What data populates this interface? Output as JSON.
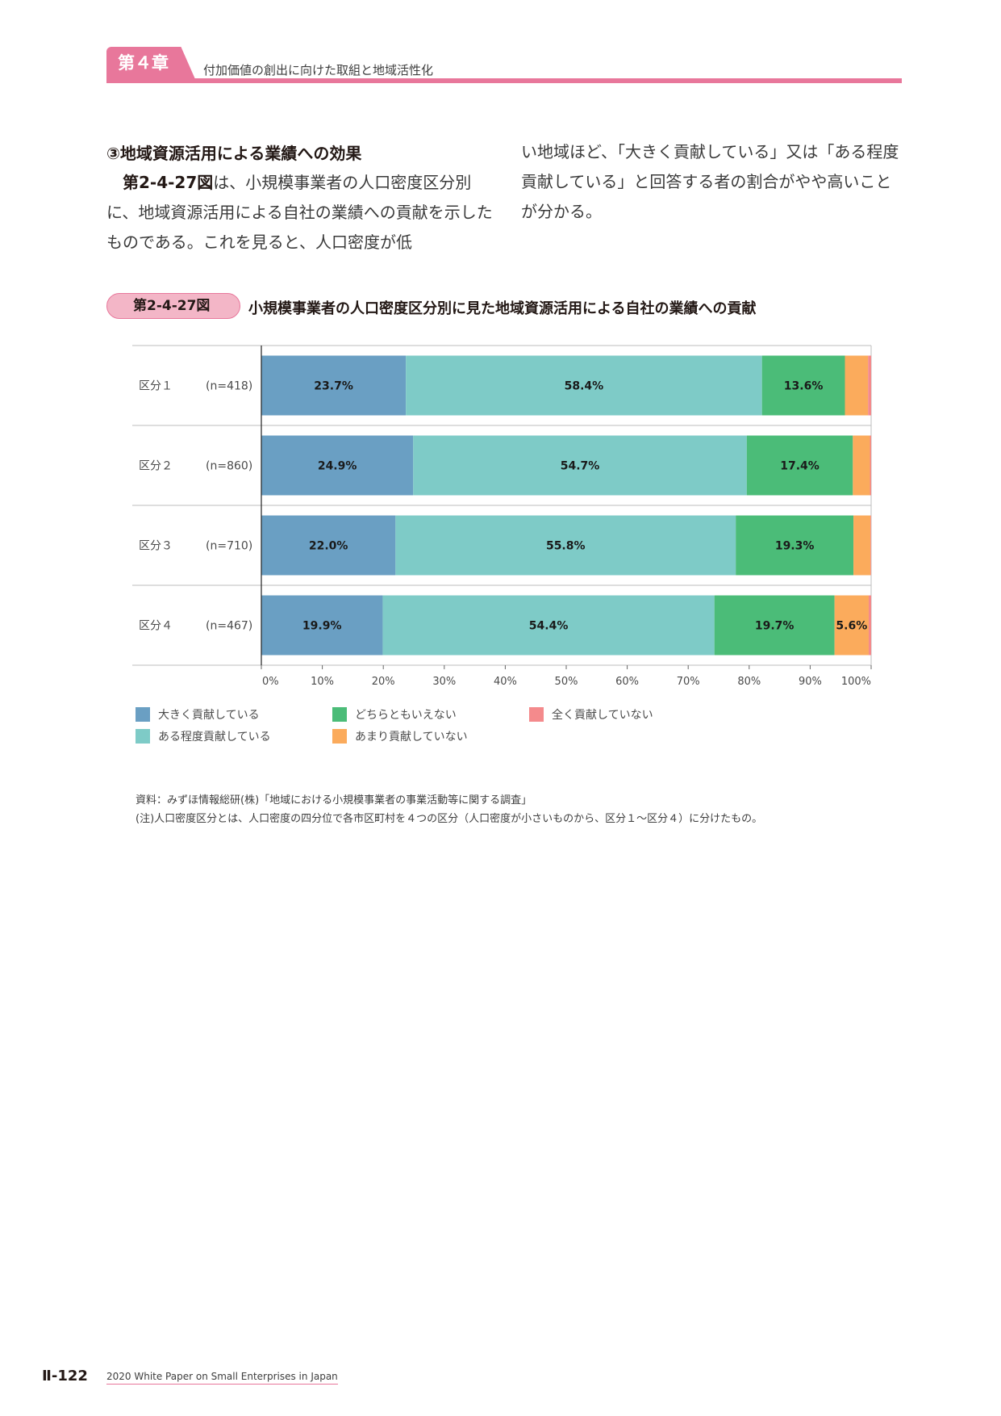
{
  "header": {
    "chapter_label": "第４章",
    "chapter_title": "付加価値の創出に向けた取組と地域活性化"
  },
  "section": {
    "heading": "③地域資源活用による業績への効果",
    "left_lead": "第2-4-27図",
    "left_text": "は、小規模事業者の人口密度区分別に、地域資源活用による自社の業績への貢献を示したものである。これを見ると、人口密度が低",
    "right_text": "い地域ほど、「大きく貢献している」又は「ある程度貢献している」と回答する者の割合がやや高いことが分かる。"
  },
  "figure": {
    "number": "第2-4-27図",
    "title": "小規模事業者の人口密度区分別に見た地域資源活用による自社の業績への貢献"
  },
  "chart_data": {
    "type": "bar",
    "orientation": "horizontal",
    "stacked": true,
    "categories": [
      "区分１",
      "区分２",
      "区分３",
      "区分４"
    ],
    "n_labels": [
      "(n=418)",
      "(n=860)",
      "(n=710)",
      "(n=467)"
    ],
    "series": [
      {
        "name": "大きく貢献している",
        "color": "#6a9fc3",
        "values": [
          23.7,
          24.9,
          22.0,
          19.9
        ],
        "labels": [
          "23.7%",
          "24.9%",
          "22.0%",
          "19.9%"
        ]
      },
      {
        "name": "ある程度貢献している",
        "color": "#7ecbc7",
        "values": [
          58.4,
          54.7,
          55.8,
          54.4
        ],
        "labels": [
          "58.4%",
          "54.7%",
          "55.8%",
          "54.4%"
        ]
      },
      {
        "name": "どちらともいえない",
        "color": "#4bbc78",
        "values": [
          13.6,
          17.4,
          19.3,
          19.7
        ],
        "labels": [
          "13.6%",
          "17.4%",
          "19.3%",
          "19.7%"
        ]
      },
      {
        "name": "あまり貢献していない",
        "color": "#fbab5c",
        "values": [
          3.8,
          2.8,
          2.8,
          5.6
        ],
        "labels": [
          "",
          "",
          "",
          "5.6%"
        ]
      },
      {
        "name": "全く貢献していない",
        "color": "#f48a8c",
        "values": [
          0.5,
          0.2,
          0.1,
          0.4
        ],
        "labels": [
          "",
          "",
          "",
          ""
        ]
      }
    ],
    "xlim": [
      0,
      100
    ],
    "xticks": [
      "0%",
      "10%",
      "20%",
      "30%",
      "40%",
      "50%",
      "60%",
      "70%",
      "80%",
      "90%",
      "100%"
    ],
    "legend_order": [
      "大きく貢献している",
      "どちらともいえない",
      "全く貢献していない",
      "ある程度貢献している",
      "あまり貢献していない"
    ],
    "legend_placement": "bottom"
  },
  "notes": {
    "source": "資料：みずほ情報総研(株)「地域における小規模事業者の事業活動等に関する調査」",
    "note": "(注)人口密度区分とは、人口密度の四分位で各市区町村を４つの区分（人口密度が小さいものから、区分１～区分４）に分けたもの。"
  },
  "footer": {
    "page_number": "Ⅱ-122",
    "publication": "2020 White Paper on Small Enterprises in Japan"
  }
}
